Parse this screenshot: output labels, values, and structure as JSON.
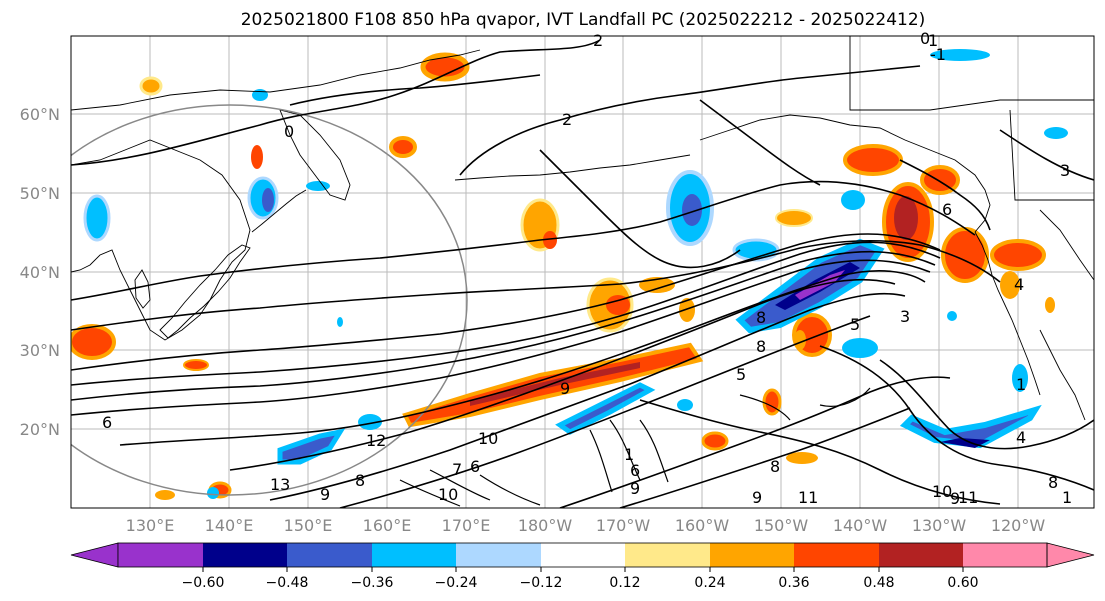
{
  "title": "2025021800 F108 850 hPa qvapor, IVT Landfall PC (2025022212 - 2025022412)",
  "lat_labels": [
    "60°N",
    "50°N",
    "40°N",
    "30°N",
    "20°N"
  ],
  "lon_labels": [
    "130°E",
    "140°E",
    "150°E",
    "160°E",
    "170°E",
    "180°W",
    "170°W",
    "160°W",
    "150°W",
    "140°W",
    "130°W",
    "120°W"
  ],
  "colorbar": {
    "colors": [
      "#9932cc",
      "#00008b",
      "#3a5bcc",
      "#00bfff",
      "#add8ff",
      "#ffffff",
      "#ffe98a",
      "#ffa500",
      "#ff4500",
      "#b22222",
      "#ff88aa"
    ],
    "tick_labels": [
      "−0.60",
      "−0.48",
      "−0.36",
      "−0.24",
      "−0.12",
      "0.12",
      "0.24",
      "0.36",
      "0.48",
      "0.60"
    ]
  },
  "contour_labels": [
    "0",
    "1",
    "2",
    "2",
    "3",
    "4",
    "6",
    "6",
    "8",
    "8",
    "9",
    "10",
    "10",
    "12",
    "13",
    "9",
    "8",
    "1",
    "9",
    "6",
    "8",
    "5",
    "5",
    "10",
    "11",
    "8",
    "1",
    "4",
    "1",
    "3",
    "0",
    "-1",
    "9",
    "7",
    "6",
    "11",
    "9"
  ]
}
